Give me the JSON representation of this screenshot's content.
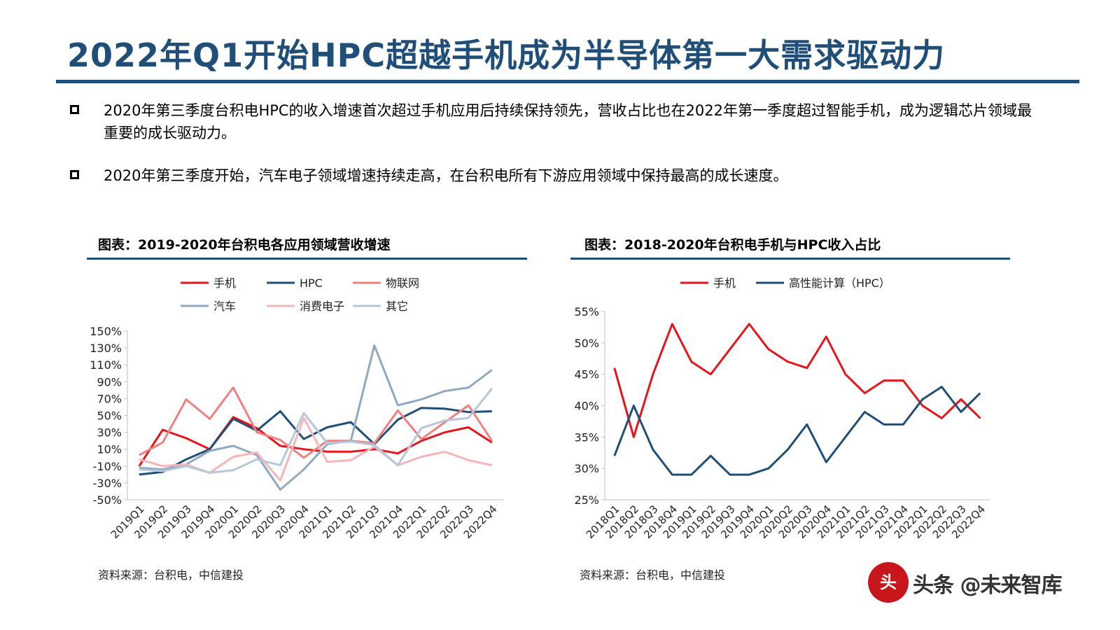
{
  "page": {
    "title": "2022年Q1开始HPC超越手机成为半导体第一大需求驱动力",
    "bullets": [
      "2020年第三季度台积电HPC的收入增速首次超过手机应用后持续保持领先，营收占比也在2022年第一季度超过智能手机，成为逻辑芯片领域最重要的成长驱动力。",
      "2020年第三季度开始，汽车电子领域增速持续走高，在台积电所有下游应用领域中保持最高的成长速度。"
    ],
    "watermark": {
      "logo_char": "头",
      "text": "头条 @未来智库"
    }
  },
  "chart_data": [
    {
      "type": "line",
      "title": "图表：2019-2020年台积电各应用领域营收增速",
      "source": "资料来源：台积电，中信建投",
      "categories": [
        "2019Q1",
        "2019Q2",
        "2019Q3",
        "2019Q4",
        "2020Q1",
        "2020Q2",
        "2020Q3",
        "2020Q4",
        "2021Q1",
        "2021Q2",
        "2021Q3",
        "2021Q4",
        "2022Q1",
        "2022Q2",
        "2022Q3",
        "2022Q4"
      ],
      "yticks": [
        "150%",
        "130%",
        "110%",
        "90%",
        "70%",
        "50%",
        "30%",
        "10%",
        "-10%",
        "-30%",
        "-50%"
      ],
      "ylim": [
        -50,
        150
      ],
      "series": [
        {
          "name": "手机",
          "color": "#e8141b",
          "values": [
            -10,
            33,
            23,
            10,
            48,
            35,
            14,
            10,
            7,
            7,
            10,
            5,
            20,
            30,
            36,
            18
          ]
        },
        {
          "name": "HPC",
          "color": "#1f4e79",
          "values": [
            -20,
            -17,
            -2,
            10,
            46,
            32,
            55,
            22,
            36,
            42,
            16,
            45,
            59,
            58,
            54,
            55
          ]
        },
        {
          "name": "物联网",
          "color": "#f08080",
          "values": [
            3,
            18,
            69,
            46,
            83,
            30,
            21,
            0,
            20,
            20,
            17,
            56,
            22,
            42,
            62,
            20
          ]
        },
        {
          "name": "汽车",
          "color": "#8fa9c0",
          "values": [
            -12,
            -14,
            -8,
            8,
            14,
            3,
            -38,
            -14,
            16,
            20,
            133,
            62,
            69,
            79,
            83,
            104
          ]
        },
        {
          "name": "消费电子",
          "color": "#f7b5b8",
          "values": [
            -2,
            -10,
            -8,
            -18,
            1,
            6,
            -27,
            47,
            -5,
            -3,
            13,
            -9,
            1,
            7,
            -3,
            -9
          ]
        },
        {
          "name": "其它",
          "color": "#b4c7dc",
          "values": [
            -14,
            -16,
            -10,
            -18,
            -15,
            -2,
            -9,
            53,
            17,
            19,
            15,
            -9,
            35,
            44,
            47,
            82
          ]
        }
      ],
      "legend_rows": [
        [
          0,
          1,
          2
        ],
        [
          3,
          4,
          5
        ]
      ],
      "grid": false
    },
    {
      "type": "line",
      "title": "图表：2018-2020年台积电手机与HPC收入占比",
      "source": "资料来源：台积电，中信建投",
      "categories": [
        "2018Q1",
        "2018Q2",
        "2018Q3",
        "2018Q4",
        "2019Q1",
        "2019Q2",
        "2019Q3",
        "2019Q4",
        "2020Q1",
        "2020Q2",
        "2020Q3",
        "2020Q4",
        "2021Q1",
        "2021Q2",
        "2021Q3",
        "2021Q4",
        "2022Q1",
        "2022Q2",
        "2022Q3",
        "2022Q4"
      ],
      "yticks": [
        "55%",
        "50%",
        "45%",
        "40%",
        "35%",
        "30%",
        "25%"
      ],
      "ylim": [
        25,
        55
      ],
      "series": [
        {
          "name": "手机",
          "color": "#e8141b",
          "values": [
            46,
            35,
            45,
            53,
            47,
            45,
            49,
            53,
            49,
            47,
            46,
            51,
            45,
            42,
            44,
            44,
            40,
            38,
            41,
            38
          ]
        },
        {
          "name": "高性能计算（HPC）",
          "color": "#1f4e79",
          "values": [
            32,
            40,
            33,
            29,
            29,
            32,
            29,
            29,
            30,
            33,
            37,
            31,
            35,
            39,
            37,
            37,
            41,
            43,
            39,
            42
          ]
        }
      ],
      "legend_rows": [
        [
          0,
          1
        ]
      ],
      "grid": false
    }
  ]
}
